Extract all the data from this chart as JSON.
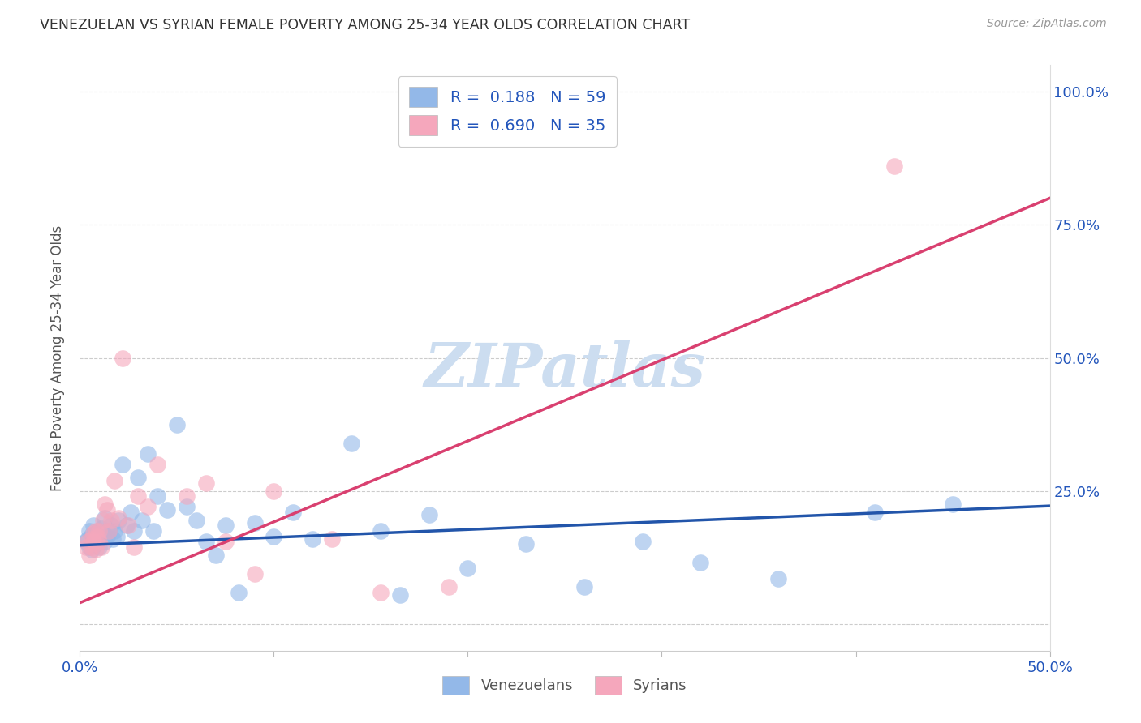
{
  "title": "VENEZUELAN VS SYRIAN FEMALE POVERTY AMONG 25-34 YEAR OLDS CORRELATION CHART",
  "source": "Source: ZipAtlas.com",
  "ylabel": "Female Poverty Among 25-34 Year Olds",
  "xlim": [
    0.0,
    0.5
  ],
  "ylim": [
    -0.05,
    1.05
  ],
  "xticks": [
    0.0,
    0.1,
    0.2,
    0.3,
    0.4,
    0.5
  ],
  "xticklabels": [
    "0.0%",
    "",
    "",
    "",
    "",
    "50.0%"
  ],
  "yticks": [
    0.0,
    0.25,
    0.5,
    0.75,
    1.0
  ],
  "yticklabels": [
    "",
    "25.0%",
    "50.0%",
    "75.0%",
    "100.0%"
  ],
  "venezuelan_color": "#93b8e8",
  "syrian_color": "#f5a7bc",
  "venezuelan_line_color": "#2255aa",
  "syrian_line_color": "#d94070",
  "R_venezuelan": 0.188,
  "N_venezuelan": 59,
  "R_syrian": 0.69,
  "N_syrian": 35,
  "watermark": "ZIPatlas",
  "watermark_color": "#ccddf0",
  "venezuelan_line_x0": 0.0,
  "venezuelan_line_y0": 0.148,
  "venezuelan_line_x1": 0.5,
  "venezuelan_line_y1": 0.222,
  "syrian_line_x0": 0.0,
  "syrian_line_y0": 0.04,
  "syrian_line_x1": 0.5,
  "syrian_line_y1": 0.8,
  "venezuelan_x": [
    0.003,
    0.004,
    0.005,
    0.005,
    0.006,
    0.006,
    0.007,
    0.007,
    0.008,
    0.008,
    0.009,
    0.009,
    0.01,
    0.01,
    0.011,
    0.011,
    0.012,
    0.013,
    0.013,
    0.014,
    0.015,
    0.016,
    0.017,
    0.018,
    0.019,
    0.02,
    0.022,
    0.024,
    0.026,
    0.028,
    0.03,
    0.032,
    0.035,
    0.038,
    0.04,
    0.045,
    0.05,
    0.055,
    0.06,
    0.065,
    0.07,
    0.075,
    0.082,
    0.09,
    0.1,
    0.11,
    0.12,
    0.14,
    0.155,
    0.165,
    0.18,
    0.2,
    0.23,
    0.26,
    0.29,
    0.32,
    0.36,
    0.41,
    0.45
  ],
  "venezuelan_y": [
    0.155,
    0.16,
    0.145,
    0.175,
    0.14,
    0.168,
    0.155,
    0.185,
    0.15,
    0.17,
    0.158,
    0.162,
    0.145,
    0.175,
    0.16,
    0.18,
    0.17,
    0.2,
    0.155,
    0.165,
    0.175,
    0.185,
    0.16,
    0.175,
    0.165,
    0.195,
    0.3,
    0.185,
    0.21,
    0.175,
    0.275,
    0.195,
    0.32,
    0.175,
    0.24,
    0.215,
    0.375,
    0.22,
    0.195,
    0.155,
    0.13,
    0.185,
    0.06,
    0.19,
    0.165,
    0.21,
    0.16,
    0.34,
    0.175,
    0.055,
    0.205,
    0.105,
    0.15,
    0.07,
    0.155,
    0.115,
    0.085,
    0.21,
    0.225
  ],
  "syrian_x": [
    0.003,
    0.004,
    0.005,
    0.006,
    0.006,
    0.007,
    0.007,
    0.008,
    0.008,
    0.009,
    0.01,
    0.01,
    0.011,
    0.012,
    0.013,
    0.014,
    0.015,
    0.016,
    0.018,
    0.02,
    0.022,
    0.025,
    0.028,
    0.03,
    0.035,
    0.04,
    0.055,
    0.065,
    0.075,
    0.09,
    0.1,
    0.13,
    0.155,
    0.19,
    0.42
  ],
  "syrian_y": [
    0.145,
    0.155,
    0.13,
    0.16,
    0.145,
    0.17,
    0.155,
    0.175,
    0.14,
    0.165,
    0.155,
    0.175,
    0.145,
    0.195,
    0.225,
    0.215,
    0.175,
    0.195,
    0.27,
    0.2,
    0.5,
    0.185,
    0.145,
    0.24,
    0.22,
    0.3,
    0.24,
    0.265,
    0.155,
    0.095,
    0.25,
    0.16,
    0.06,
    0.07,
    0.86
  ]
}
